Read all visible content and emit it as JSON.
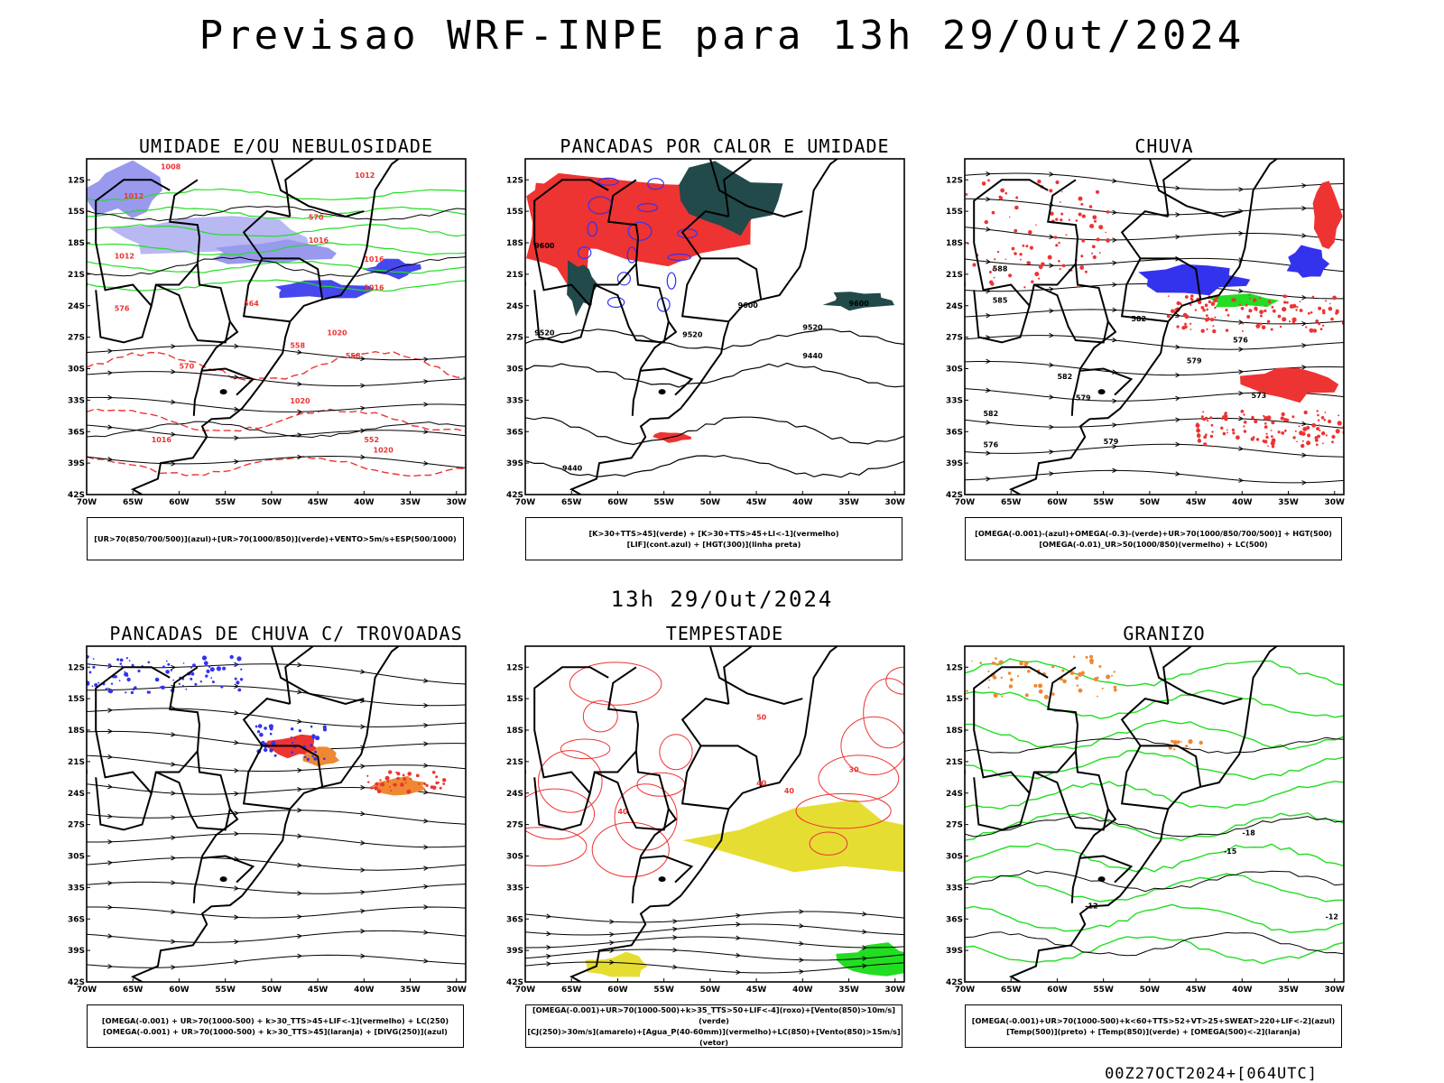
{
  "main_title": "Previsao WRF-INPE  para 13h 29/Out/2024",
  "mid_time": "13h 29/Out/2024",
  "footer": "00Z27OCT2024+[064UTC]",
  "axes": {
    "lat": [
      "12S",
      "15S",
      "18S",
      "21S",
      "24S",
      "27S",
      "30S",
      "33S",
      "36S",
      "39S",
      "42S"
    ],
    "lon": [
      "70W",
      "65W",
      "60W",
      "55W",
      "50W",
      "45W",
      "40W",
      "35W",
      "30W"
    ]
  },
  "colors": {
    "blue": "#3333ee",
    "light_blue": "#9999ee",
    "green": "#22dd22",
    "red": "#ee3333",
    "dark_teal": "#224a4a",
    "orange": "#ee8833",
    "yellow": "#e6dd33",
    "purple": "#9933cc"
  },
  "panels": [
    {
      "title": "UMIDADE E/OU NEBULOSIDADE",
      "legend": [
        "[UR>70(850/700/500)](azul)+[UR>70(1000/850)](verde)+VENTO>5m/s+ESP(500/1000)"
      ],
      "labels": [
        "1008",
        "1012",
        "1012",
        "1016",
        "1016",
        "1016",
        "1020",
        "1020",
        "1012",
        "576",
        "570",
        "564",
        "558",
        "552",
        "558",
        "570",
        "1016",
        "1020"
      ]
    },
    {
      "title": "PANCADAS POR CALOR E UMIDADE",
      "legend": [
        "[K>30+TTS>45](verde) + [K>30+TTS>45+LI<-1](vermelho)",
        "[LIF](cont.azul) + [HGT(300)](linha preta)"
      ],
      "labels": [
        "9600",
        "9600",
        "9600",
        "9520",
        "9520",
        "9520",
        "9440",
        "9440"
      ]
    },
    {
      "title": "CHUVA",
      "legend": [
        "[OMEGA(-0.001)-(azul)+OMEGA(-0.3)-(verde)+UR>70(1000/850/700/500)] + HGT(500)",
        "[OMEGA(-0.01)_UR>50(1000/850)(vermelho) + LC(500)"
      ],
      "labels": [
        "588",
        "585",
        "582",
        "579",
        "576",
        "573",
        "582",
        "579",
        "576",
        "582",
        "579"
      ]
    },
    {
      "title": "PANCADAS DE CHUVA C/ TROVOADAS",
      "legend": [
        "[OMEGA(-0.001) + UR>70(1000-500) + k>30_TTS>45+LIF<-1](vermelho) + LC(250)",
        "[OMEGA(-0.001) + UR>70(1000-500) + k>30_TTS>45](laranja) + [DIVG(250)](azul)"
      ],
      "labels": []
    },
    {
      "title": "TEMPESTADE",
      "legend": [
        "[OMEGA(-0.001)+UR>70(1000-500)+k>35_TTS>50+LIF<-4](roxo)+[Vento(850)>10m/s](verde)",
        "[CJ(250)>30m/s](amarelo)+[Agua_P(40-60mm)](vermelho)+LC(850)+[Vento(850)>15m/s](vetor)"
      ],
      "labels": [
        "40",
        "40",
        "40",
        "50",
        "30"
      ]
    },
    {
      "title": "GRANIZO",
      "legend": [
        "[OMEGA(-0.001)+UR>70(1000-500)+k<60+TTS>52+VT>25+SWEAT>220+LIF<-2](azul)",
        "[Temp(500)](preto) + [Temp(850)](verde) + [OMEGA(500)<-2](laranja)"
      ],
      "labels": [
        "-12",
        "-18",
        "-15",
        "-12"
      ]
    }
  ]
}
